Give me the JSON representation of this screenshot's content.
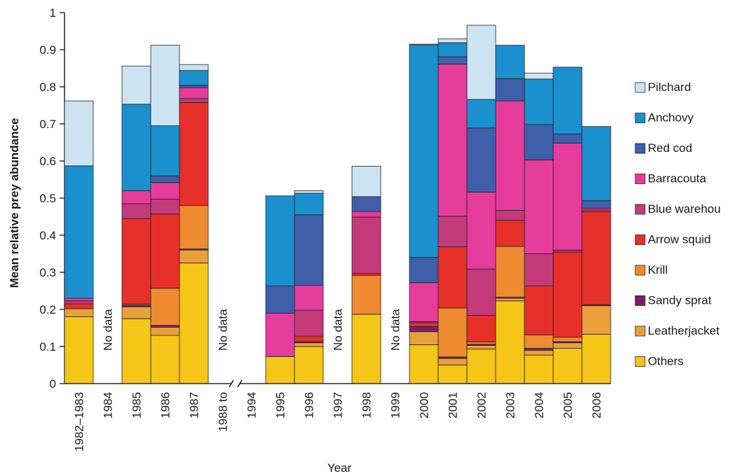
{
  "chart_data": {
    "type": "bar",
    "stacked": true,
    "xlabel": "Year",
    "ylabel": "Mean relative prey abundance",
    "ylim": [
      0,
      1
    ],
    "yticks": [
      "0",
      "0.1",
      "0.2",
      "0.3",
      "0.4",
      "0.5",
      "0.6",
      "0.7",
      "0.8",
      "0.9",
      "1"
    ],
    "grid": false,
    "legend_position": "right",
    "categories": [
      "1982–1983",
      "1984",
      "1985",
      "1986",
      "1987",
      "1988 to",
      "1994",
      "1995",
      "1996",
      "1997",
      "1998",
      "1999",
      "2000",
      "2001",
      "2002",
      "2003",
      "2004",
      "2005",
      "2006"
    ],
    "no_data_label": "No data",
    "no_data_categories": [
      "1984",
      "1988 to",
      "1997",
      "1999"
    ],
    "axis_break_after": "1987",
    "series": [
      {
        "name": "Others",
        "color": "#f5c518",
        "values": [
          0.18,
          0,
          0.175,
          0.13,
          0.325,
          0,
          0,
          0.073,
          0.1,
          0,
          0.187,
          0,
          0.105,
          0.05,
          0.093,
          0.223,
          0.077,
          0.095,
          0.133
        ]
      },
      {
        "name": "Leatherjacket",
        "color": "#e9a03b",
        "values": [
          0.022,
          0,
          0.032,
          0.022,
          0.035,
          0,
          0,
          0,
          0.01,
          0,
          0,
          0,
          0.035,
          0.018,
          0.01,
          0.007,
          0.013,
          0.015,
          0.077
        ]
      },
      {
        "name": "Sandy sprat",
        "color": "#7a1f6e",
        "values": [
          0,
          0,
          0.005,
          0.005,
          0.003,
          0,
          0,
          0,
          0.003,
          0,
          0,
          0,
          0.014,
          0.004,
          0.003,
          0.003,
          0.005,
          0.003,
          0.003
        ]
      },
      {
        "name": "Krill",
        "color": "#ee8a2f",
        "values": [
          0,
          0,
          0.003,
          0.1,
          0.117,
          0,
          0,
          0,
          0,
          0,
          0.105,
          0,
          0,
          0.132,
          0.006,
          0.137,
          0.036,
          0.012,
          0
        ]
      },
      {
        "name": "Arrow squid",
        "color": "#e8302a",
        "values": [
          0.013,
          0,
          0.23,
          0.2,
          0.278,
          0,
          0,
          0,
          0.015,
          0,
          0.005,
          0,
          0.01,
          0.165,
          0.072,
          0.07,
          0.132,
          0.23,
          0.25
        ]
      },
      {
        "name": "Blue warehou",
        "color": "#c43a7a",
        "values": [
          0.008,
          0,
          0.04,
          0.04,
          0.01,
          0,
          0,
          0,
          0.07,
          0,
          0.152,
          0,
          0.003,
          0.082,
          0.125,
          0.027,
          0.087,
          0.005,
          0.005
        ]
      },
      {
        "name": "Barracouta",
        "color": "#e63c9c",
        "values": [
          0.007,
          0,
          0.035,
          0.045,
          0.03,
          0,
          0,
          0.117,
          0.067,
          0,
          0.015,
          0,
          0.105,
          0.41,
          0.207,
          0.295,
          0.253,
          0.288,
          0.005
        ]
      },
      {
        "name": "Red cod",
        "color": "#3f5faa",
        "values": [
          0,
          0,
          0,
          0.018,
          0.006,
          0,
          0,
          0.073,
          0.19,
          0,
          0.04,
          0,
          0.068,
          0.02,
          0.173,
          0.06,
          0.095,
          0.025,
          0.02
        ]
      },
      {
        "name": "Anchovy",
        "color": "#1b90cf",
        "values": [
          0.357,
          0,
          0.233,
          0.135,
          0.04,
          0,
          0,
          0.243,
          0.058,
          0,
          0,
          0,
          0.573,
          0.038,
          0.077,
          0.09,
          0.123,
          0.18,
          0.2
        ]
      },
      {
        "name": "Pilchard",
        "color": "#cce3f2",
        "values": [
          0.175,
          0,
          0.103,
          0.217,
          0.016,
          0,
          0,
          0,
          0.007,
          0,
          0.082,
          0,
          0.002,
          0.01,
          0.2,
          0,
          0.016,
          0,
          0
        ]
      }
    ],
    "legend_order": [
      "Pilchard",
      "Anchovy",
      "Red cod",
      "Barracouta",
      "Blue warehou",
      "Arrow squid",
      "Krill",
      "Sandy sprat",
      "Leatherjacket",
      "Others"
    ]
  }
}
